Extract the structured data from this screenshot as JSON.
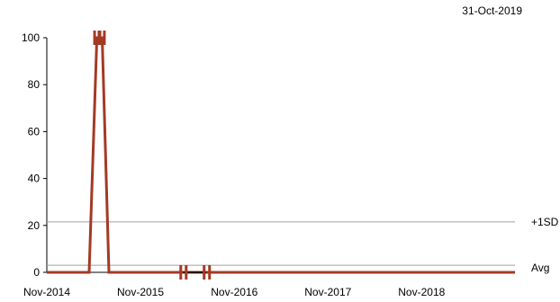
{
  "chart_data": {
    "type": "line",
    "date_label": "31-Oct-2019",
    "ylim": [
      0,
      100
    ],
    "yticks": [
      0,
      20,
      40,
      60,
      80,
      100
    ],
    "xlim": [
      "2014-11-01",
      "2019-10-31"
    ],
    "xticks": [
      {
        "label": "Nov-2014",
        "date": "2014-11-01"
      },
      {
        "label": "Nov-2015",
        "date": "2015-11-01"
      },
      {
        "label": "Nov-2016",
        "date": "2016-11-01"
      },
      {
        "label": "Nov-2017",
        "date": "2017-11-01"
      },
      {
        "label": "Nov-2018",
        "date": "2018-11-01"
      }
    ],
    "reference_lines": [
      {
        "label": "+1SD",
        "value": 21.5,
        "color": "#a0a0a0"
      },
      {
        "label": "Avg",
        "value": 3,
        "color": "#a0a0a0"
      }
    ],
    "series": [
      {
        "color": "#a33a24",
        "points": [
          {
            "x": "2014-11-01",
            "y": 0
          },
          {
            "x": "2015-04-15",
            "y": 0
          },
          {
            "x": "2015-05-15",
            "y": 100
          },
          {
            "x": "2015-06-05",
            "y": 100
          },
          {
            "x": "2015-07-01",
            "y": 0
          },
          {
            "x": "2019-10-31",
            "y": 0
          }
        ],
        "markers": [
          {
            "x": "2015-05-15",
            "y": 100
          },
          {
            "x": "2015-06-01",
            "y": 100
          },
          {
            "x": "2016-04-15",
            "y": 0
          },
          {
            "x": "2016-07-15",
            "y": 0
          }
        ]
      }
    ],
    "zero_segment": {
      "from": "2016-04-15",
      "to": "2016-07-15",
      "color": "#000000"
    }
  }
}
